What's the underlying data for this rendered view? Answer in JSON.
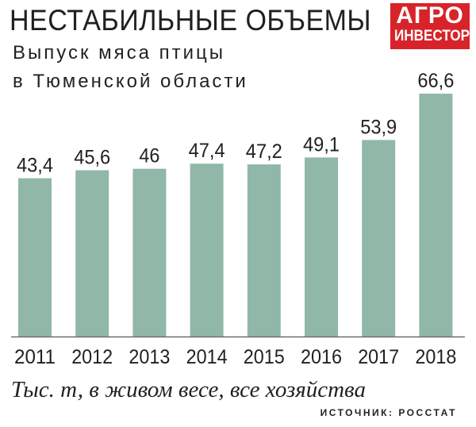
{
  "header": {
    "title": "НЕСТАБИЛЬНЫЕ ОБЪЕМЫ",
    "subtitle_line1": "Выпуск мяса птицы",
    "subtitle_line2": "в Тюменской области"
  },
  "logo": {
    "line1": "АГРО",
    "line2": "ИНВЕСТОР"
  },
  "footer": {
    "note": "Тыс. т, в живом весе, все хозяйства",
    "source": "ИСТОЧНИК: РОССТАТ"
  },
  "colors": {
    "bar": "#91b7a8",
    "text": "#231f20",
    "logo_bg": "#d8232a"
  },
  "chart_data": {
    "type": "bar",
    "title": "НЕСТАБИЛЬНЫЕ ОБЪЕМЫ",
    "subtitle": "Выпуск мяса птицы в Тюменской области",
    "categories": [
      "2011",
      "2012",
      "2013",
      "2014",
      "2015",
      "2016",
      "2017",
      "2018"
    ],
    "values": [
      43.4,
      45.6,
      46,
      47.4,
      47.2,
      49.1,
      53.9,
      66.6
    ],
    "value_labels": [
      "43,4",
      "45,6",
      "46",
      "47,4",
      "47,2",
      "49,1",
      "53,9",
      "66,6"
    ],
    "ylim": [
      0,
      66.6
    ],
    "grid": false,
    "legend": "none"
  }
}
